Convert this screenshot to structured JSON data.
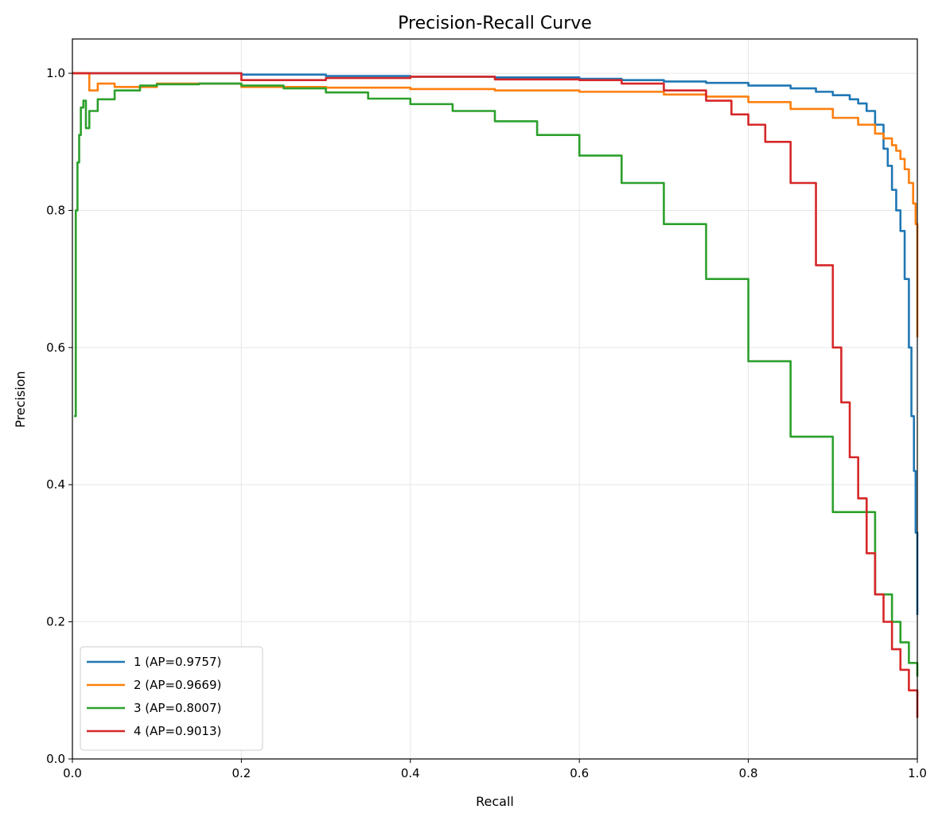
{
  "chart_data": {
    "type": "line",
    "title": "Precision-Recall Curve",
    "xlabel": "Recall",
    "ylabel": "Precision",
    "xlim": [
      0.0,
      1.0
    ],
    "ylim": [
      0.0,
      1.05
    ],
    "xticks": [
      "0.0",
      "0.2",
      "0.4",
      "0.6",
      "0.8",
      "1.0"
    ],
    "yticks": [
      "0.0",
      "0.2",
      "0.4",
      "0.6",
      "0.8",
      "1.0"
    ],
    "grid": true,
    "legend_position": "lower-left",
    "series": [
      {
        "name": "1 (AP=0.9757)",
        "color": "#1f77b4",
        "x": [
          0.0,
          0.02,
          0.1,
          0.2,
          0.3,
          0.4,
          0.5,
          0.6,
          0.65,
          0.7,
          0.75,
          0.8,
          0.85,
          0.88,
          0.9,
          0.92,
          0.93,
          0.94,
          0.95,
          0.96,
          0.965,
          0.97,
          0.975,
          0.98,
          0.985,
          0.99,
          0.993,
          0.996,
          0.998,
          1.0
        ],
        "y": [
          1.0,
          1.0,
          1.0,
          0.998,
          0.996,
          0.995,
          0.994,
          0.992,
          0.99,
          0.988,
          0.986,
          0.982,
          0.978,
          0.973,
          0.968,
          0.962,
          0.956,
          0.945,
          0.925,
          0.89,
          0.865,
          0.83,
          0.8,
          0.77,
          0.7,
          0.6,
          0.5,
          0.42,
          0.33,
          0.21
        ]
      },
      {
        "name": "2 (AP=0.9669)",
        "color": "#ff7f0e",
        "x": [
          0.0,
          0.015,
          0.02,
          0.03,
          0.05,
          0.1,
          0.2,
          0.3,
          0.4,
          0.5,
          0.6,
          0.7,
          0.75,
          0.8,
          0.85,
          0.9,
          0.93,
          0.95,
          0.96,
          0.97,
          0.975,
          0.98,
          0.985,
          0.99,
          0.995,
          0.998,
          1.0
        ],
        "y": [
          1.0,
          1.0,
          0.975,
          0.985,
          0.98,
          0.985,
          0.98,
          0.979,
          0.977,
          0.975,
          0.973,
          0.969,
          0.966,
          0.958,
          0.948,
          0.935,
          0.925,
          0.912,
          0.905,
          0.895,
          0.887,
          0.875,
          0.86,
          0.84,
          0.81,
          0.78,
          0.615
        ]
      },
      {
        "name": "3 (AP=0.8007)",
        "color": "#2ca02c",
        "x": [
          0.002,
          0.004,
          0.006,
          0.008,
          0.01,
          0.013,
          0.016,
          0.02,
          0.03,
          0.05,
          0.08,
          0.1,
          0.15,
          0.2,
          0.25,
          0.3,
          0.35,
          0.4,
          0.45,
          0.5,
          0.55,
          0.6,
          0.65,
          0.7,
          0.75,
          0.8,
          0.85,
          0.9,
          0.95,
          0.97,
          0.98,
          0.99,
          1.0
        ],
        "y": [
          0.5,
          0.8,
          0.87,
          0.91,
          0.95,
          0.96,
          0.92,
          0.945,
          0.962,
          0.975,
          0.982,
          0.984,
          0.985,
          0.982,
          0.978,
          0.972,
          0.963,
          0.955,
          0.945,
          0.93,
          0.91,
          0.88,
          0.84,
          0.78,
          0.7,
          0.58,
          0.47,
          0.36,
          0.24,
          0.2,
          0.17,
          0.14,
          0.12
        ]
      },
      {
        "name": "4 (AP=0.9013)",
        "color": "#d62728",
        "x": [
          0.0,
          0.05,
          0.1,
          0.2,
          0.3,
          0.4,
          0.5,
          0.6,
          0.65,
          0.7,
          0.75,
          0.78,
          0.8,
          0.82,
          0.85,
          0.88,
          0.9,
          0.91,
          0.92,
          0.93,
          0.94,
          0.95,
          0.96,
          0.97,
          0.98,
          0.99,
          1.0
        ],
        "y": [
          1.0,
          1.0,
          1.0,
          0.99,
          0.993,
          0.995,
          0.991,
          0.99,
          0.985,
          0.975,
          0.96,
          0.94,
          0.925,
          0.9,
          0.84,
          0.72,
          0.6,
          0.52,
          0.44,
          0.38,
          0.3,
          0.24,
          0.2,
          0.16,
          0.13,
          0.1,
          0.06
        ]
      }
    ]
  }
}
